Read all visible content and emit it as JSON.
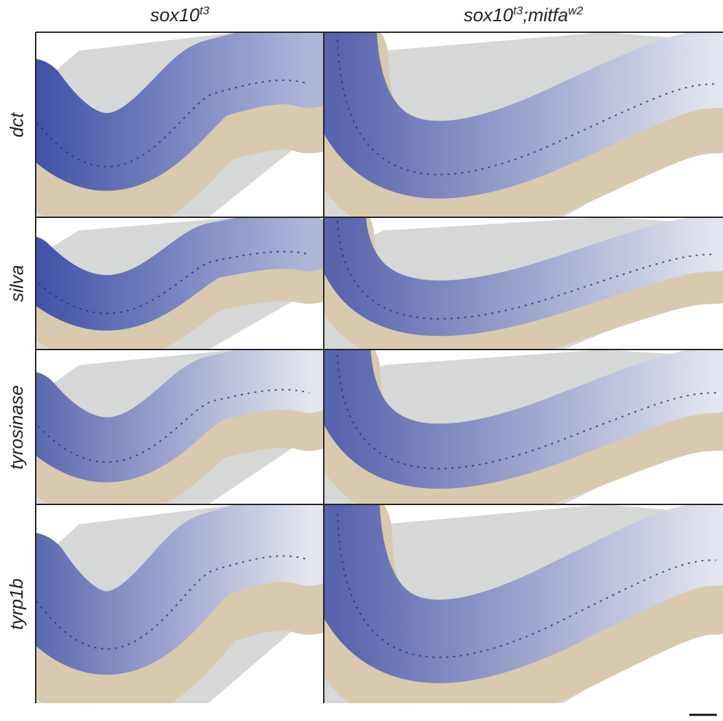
{
  "columns": [
    [
      "sox10",
      "t3"
    ],
    [
      "sox10",
      "t3",
      ";mitfa",
      "w2"
    ]
  ],
  "rows": [
    "dct",
    "silva",
    "tyrosinase",
    "tyrp1b"
  ]
}
